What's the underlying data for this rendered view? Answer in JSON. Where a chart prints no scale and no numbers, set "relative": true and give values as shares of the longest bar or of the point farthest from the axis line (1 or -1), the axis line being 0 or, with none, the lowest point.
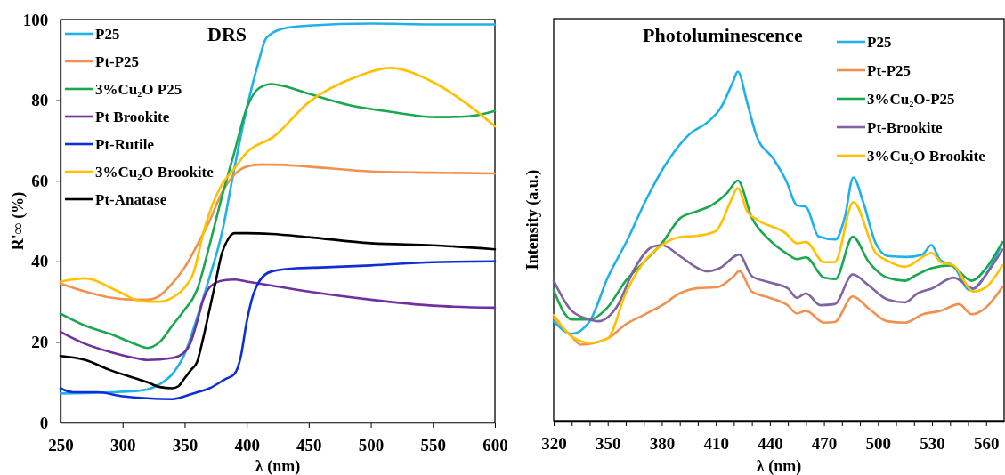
{
  "chart_data": [
    {
      "type": "line",
      "title": "DRS",
      "xlabel": "λ (nm)",
      "ylabel": "R'∞ (%)",
      "xlim": [
        250,
        600
      ],
      "ylim": [
        0,
        100
      ],
      "xticks": [
        250,
        300,
        350,
        400,
        450,
        500,
        550,
        600
      ],
      "yticks": [
        0,
        20,
        40,
        60,
        80,
        100
      ],
      "legend": "top left",
      "grid": false,
      "marker": "none",
      "line_style": "solid",
      "series": [
        {
          "name": "P25",
          "color": "#1eb1ea",
          "x": [
            250,
            270,
            290,
            310,
            320,
            330,
            340,
            350,
            360,
            370,
            380,
            390,
            400,
            410,
            415,
            420,
            430,
            450,
            500,
            550,
            600
          ],
          "values": [
            7.2,
            7.3,
            7.5,
            7.8,
            8.2,
            9.5,
            12,
            17,
            26,
            36,
            47,
            63,
            78,
            90,
            95,
            96.5,
            97.8,
            98.5,
            99,
            98.8,
            98.8
          ]
        },
        {
          "name": "Pt-P25",
          "color": "#f0914f",
          "x": [
            250,
            270,
            290,
            310,
            320,
            330,
            340,
            350,
            360,
            370,
            380,
            390,
            400,
            410,
            420,
            450,
            500,
            550,
            600
          ],
          "values": [
            34.5,
            32.5,
            31,
            30.5,
            30.5,
            31.5,
            34.5,
            38.5,
            44,
            50,
            57,
            61.5,
            63.5,
            64,
            64,
            63.5,
            62.3,
            62,
            61.8
          ]
        },
        {
          "name": "3%Cu₂O P25",
          "color": "#1aa84f",
          "x": [
            250,
            270,
            290,
            310,
            320,
            330,
            340,
            350,
            357,
            360,
            370,
            380,
            390,
            400,
            410,
            420,
            430,
            450,
            488,
            514,
            553,
            579,
            600
          ],
          "values": [
            27,
            24,
            22,
            19.5,
            18.5,
            20,
            24,
            28,
            31,
            33,
            44,
            56,
            67,
            78,
            83,
            84,
            83.5,
            81.6,
            78.4,
            77.2,
            75.8,
            76,
            77.3
          ]
        },
        {
          "name": "Pt Brookite",
          "color": "#7030a0",
          "x": [
            250,
            270,
            290,
            310,
            320,
            340,
            350,
            355,
            360,
            365,
            370,
            380,
            390,
            400,
            420,
            450,
            500,
            550,
            600
          ],
          "values": [
            22.5,
            19.5,
            17.5,
            16,
            15.5,
            16,
            17.5,
            20,
            25,
            30.5,
            33.5,
            35.2,
            35.5,
            35,
            34,
            32.5,
            30.5,
            29,
            28.5
          ]
        },
        {
          "name": "Pt-Rutile",
          "color": "#0f2fd6",
          "x": [
            250,
            260,
            280,
            300,
            320,
            340,
            350,
            360,
            370,
            383,
            390,
            395,
            400,
            405,
            410,
            420,
            440,
            460,
            500,
            550,
            600
          ],
          "values": [
            8.5,
            7.5,
            7.5,
            6.5,
            6,
            5.8,
            6.5,
            7.5,
            8.5,
            10.8,
            12,
            16,
            25,
            31.5,
            35,
            37.5,
            38.3,
            38.5,
            39,
            39.8,
            40
          ]
        },
        {
          "name": "3%Cu₂O Brookite",
          "color": "#ffc000",
          "x": [
            250,
            260,
            270,
            280,
            290,
            300,
            310,
            320,
            330,
            340,
            350,
            357,
            365,
            370,
            380,
            390,
            400,
            422,
            450,
            490,
            515,
            550,
            580,
            600
          ],
          "values": [
            35,
            35.5,
            35.8,
            35,
            33.5,
            32,
            30.5,
            30,
            30,
            31,
            33.5,
            37,
            47,
            52,
            59,
            63,
            67,
            71,
            79.5,
            86,
            88,
            84.5,
            78.5,
            73.5
          ]
        },
        {
          "name": "Pt-Anatase",
          "color": "#000000",
          "x": [
            250,
            270,
            290,
            310,
            320,
            330,
            340,
            345,
            350,
            355,
            360,
            365,
            370,
            375,
            380,
            385,
            390,
            400,
            420,
            450,
            500,
            550,
            600
          ],
          "values": [
            16.5,
            15.5,
            13,
            11,
            10,
            8.8,
            8.5,
            9,
            11,
            13,
            15,
            21,
            28,
            35,
            42,
            45.5,
            47,
            47,
            46.8,
            46,
            44.5,
            44,
            43
          ]
        }
      ]
    },
    {
      "type": "line",
      "title": "Photoluminescence",
      "xlabel": "λ (nm)",
      "ylabel": "Intensity (a.u.)",
      "relative": true,
      "xlim": [
        320,
        570
      ],
      "xticks": [
        320,
        {
          "value": 330,
          "label": null
        },
        {
          "value": 340,
          "label": null
        },
        350,
        {
          "value": 360,
          "label": null
        },
        {
          "value": 370,
          "label": null
        },
        380,
        {
          "value": 390,
          "label": null
        },
        {
          "value": 400,
          "label": null
        },
        410,
        {
          "value": 420,
          "label": null
        },
        {
          "value": 430,
          "label": null
        },
        440,
        {
          "value": 450,
          "label": null
        },
        {
          "value": 460,
          "label": null
        },
        470,
        {
          "value": 480,
          "label": null
        },
        {
          "value": 490,
          "label": null
        },
        500,
        {
          "value": 510,
          "label": null
        },
        {
          "value": 520,
          "label": null
        },
        530,
        {
          "value": 540,
          "label": null
        },
        {
          "value": 550,
          "label": null
        },
        560
      ],
      "tick_labels": "x",
      "legend": "top right",
      "grid": false,
      "marker": "none",
      "line_style": "solid",
      "series": [
        {
          "name": "P25",
          "color": "#1eb1ea",
          "x": [
            320,
            330,
            340,
            350,
            361,
            371.5,
            382,
            395.6,
            405.9,
            412.8,
            419.7,
            422.2,
            427.4,
            432.5,
            442,
            449,
            455,
            460,
            467,
            476.4,
            481.5,
            486.3,
            491.8,
            498.7,
            505.6,
            515.9,
            524.5,
            529.6,
            534.8,
            541.6,
            551,
            558.8,
            568.8
          ],
          "values": [
            0.285,
            0.249,
            0.285,
            0.41,
            0.519,
            0.635,
            0.733,
            0.822,
            0.857,
            0.897,
            0.973,
            1,
            0.911,
            0.817,
            0.75,
            0.688,
            0.617,
            0.613,
            0.528,
            0.519,
            0.581,
            0.697,
            0.626,
            0.509,
            0.472,
            0.469,
            0.476,
            0.503,
            0.459,
            0.445,
            0.374,
            0.41,
            0.508
          ]
        },
        {
          "name": "Pt-P25",
          "color": "#f0914f",
          "x": [
            320,
            330,
            335,
            350,
            360,
            370,
            380,
            390,
            400,
            410,
            420,
            423,
            430,
            440,
            450,
            455,
            460,
            470,
            476,
            486,
            495,
            505,
            515,
            525,
            535,
            545,
            552,
            560,
            569
          ],
          "values": [
            0.294,
            0.241,
            0.218,
            0.236,
            0.276,
            0.303,
            0.33,
            0.365,
            0.38,
            0.382,
            0.414,
            0.429,
            0.37,
            0.352,
            0.33,
            0.307,
            0.315,
            0.281,
            0.283,
            0.356,
            0.321,
            0.285,
            0.281,
            0.305,
            0.315,
            0.334,
            0.305,
            0.325,
            0.383
          ]
        },
        {
          "name": "3%Cu₂O-P25",
          "color": "#1aa84f",
          "x": [
            320,
            330,
            340,
            350,
            360,
            370,
            380,
            390.4,
            399,
            407.6,
            416.2,
            422.2,
            430,
            440,
            450,
            455,
            460,
            470,
            476.4,
            486,
            495,
            505,
            515,
            520,
            529.6,
            540,
            552,
            560,
            569
          ],
          "values": [
            0.374,
            0.29,
            0.29,
            0.325,
            0.401,
            0.454,
            0.508,
            0.581,
            0.599,
            0.617,
            0.652,
            0.688,
            0.581,
            0.517,
            0.477,
            0.463,
            0.468,
            0.41,
            0.406,
            0.527,
            0.454,
            0.41,
            0.401,
            0.414,
            0.437,
            0.445,
            0.401,
            0.437,
            0.512
          ]
        },
        {
          "name": "Pt-Brookite",
          "color": "#8064a2",
          "x": [
            320,
            330,
            340,
            345,
            355,
            365,
            375,
            380,
            390,
            400,
            405,
            412,
            423,
            430,
            440,
            450,
            455,
            460,
            468,
            476,
            486,
            495,
            505,
            515,
            522,
            530,
            542,
            553,
            560,
            569
          ],
          "values": [
            0.401,
            0.315,
            0.29,
            0.285,
            0.326,
            0.437,
            0.499,
            0.503,
            0.472,
            0.437,
            0.428,
            0.437,
            0.476,
            0.414,
            0.396,
            0.379,
            0.352,
            0.365,
            0.331,
            0.334,
            0.419,
            0.387,
            0.348,
            0.339,
            0.365,
            0.379,
            0.41,
            0.379,
            0.419,
            0.49
          ]
        },
        {
          "name": "3%Cu₂O Brookite",
          "color": "#ffc000",
          "x": [
            320,
            330,
            340,
            350,
            360,
            370,
            380,
            390,
            400,
            410,
            412.8,
            418,
            422.2,
            427.4,
            432.5,
            449,
            455,
            460,
            470,
            476,
            486.3,
            498.7,
            505,
            515,
            530,
            535,
            542,
            553,
            560,
            569
          ],
          "values": [
            0.303,
            0.241,
            0.223,
            0.236,
            0.365,
            0.454,
            0.503,
            0.526,
            0.53,
            0.543,
            0.564,
            0.626,
            0.666,
            0.599,
            0.577,
            0.536,
            0.508,
            0.512,
            0.454,
            0.454,
            0.626,
            0.481,
            0.459,
            0.441,
            0.481,
            0.454,
            0.445,
            0.37,
            0.383,
            0.445
          ]
        }
      ]
    }
  ]
}
